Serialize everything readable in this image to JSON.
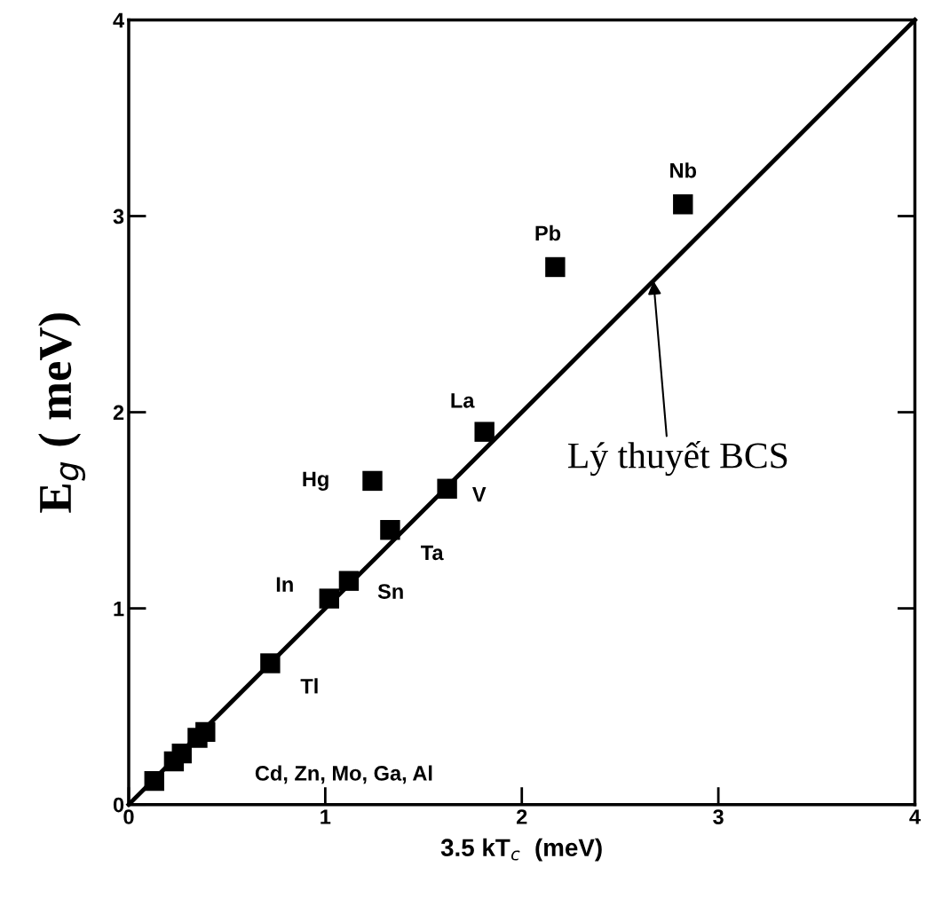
{
  "chart_data": {
    "type": "scatter",
    "xlabel": "3.5 kT$_{c}$  (meV)",
    "ylabel": "E$_{g}$ ( meV)",
    "xlim": [
      0,
      4
    ],
    "ylim": [
      0,
      4
    ],
    "xticks": [
      0,
      1,
      2,
      3,
      4
    ],
    "yticks": [
      0,
      1,
      2,
      3,
      4
    ],
    "grid": false,
    "legend": false,
    "series": [
      {
        "color": "#000000",
        "marker": "square",
        "x": [
          0.13,
          0.23,
          0.27,
          0.35,
          0.39,
          0.72,
          1.02,
          1.12,
          1.33,
          1.24,
          1.62,
          1.81,
          2.17,
          2.82
        ],
        "values": [
          0.12,
          0.22,
          0.26,
          0.34,
          0.37,
          0.72,
          1.05,
          1.14,
          1.4,
          1.65,
          1.61,
          1.9,
          2.74,
          3.06
        ]
      },
      {
        "type": "line",
        "color": "#000000",
        "line_style": "solid",
        "marker": "none",
        "x": [
          0,
          4
        ],
        "values": [
          0,
          4
        ]
      }
    ],
    "annotations": [
      {
        "text": "Nb",
        "x": 2.82,
        "y": 3.06
      },
      {
        "text": "Pb",
        "x": 2.17,
        "y": 2.74
      },
      {
        "text": "La",
        "x": 1.81,
        "y": 1.9
      },
      {
        "text": "Hg",
        "x": 1.24,
        "y": 1.65
      },
      {
        "text": "V",
        "x": 1.62,
        "y": 1.61
      },
      {
        "text": "Ta",
        "x": 1.33,
        "y": 1.4
      },
      {
        "text": "In",
        "x": 1.02,
        "y": 1.05
      },
      {
        "text": "Sn",
        "x": 1.12,
        "y": 1.14
      },
      {
        "text": "Tl",
        "x": 0.72,
        "y": 0.72
      },
      {
        "text": "Cd, Zn, Mo, Ga, Al",
        "x": 0.39,
        "y": 0.37
      },
      {
        "text": "Lý thuyết BCS",
        "x": 2.67,
        "y": 2.67
      }
    ]
  }
}
